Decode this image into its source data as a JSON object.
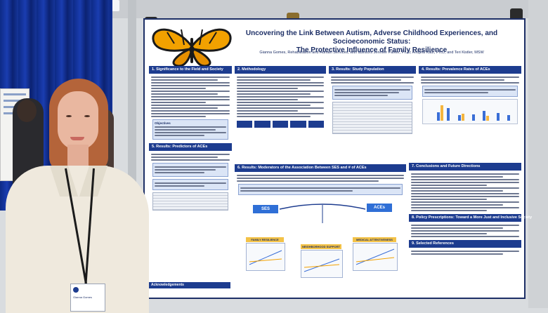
{
  "poster": {
    "title_line1": "Uncovering the Link Between Autism, Adverse Childhood Experiences, and Socioeconomic Status:",
    "title_line2": "The Protective Influence of Family Resilience",
    "authors": "Gianna Gomes, Rehabilitation and Human Services, with advisors Jennifer Parker, Ph.D; Andjela Kaur, Ph.D; and Teri Kistler, MSW",
    "sections": {
      "s1": "1. Significance to the Field and Society",
      "s2": "2. Methodology",
      "s3": "3. Results: Study Population",
      "s4": "4. Results: Prevalence Rates of ACEs",
      "s5": "5. Results: Predictors of ACEs",
      "s6": "6. Results: Moderators of the Association Between SES and # of ACEs",
      "s7": "7. Conclusions and Future Directions",
      "s8": "8. Policy Prescriptions: Toward a More Just and Inclusive Society",
      "s9": "9. Selected References"
    },
    "objectives_label": "Objectives",
    "figure": {
      "ses_label": "SES",
      "aces_label": "ACEs",
      "tag1": "FAMILY RESILIENCE",
      "tag2": "NEIGHBORHOOD SUPPORT",
      "tag3": "MEDICAL ATTENTIVENESS"
    },
    "acknowledgements": "Acknowledgements"
  },
  "badge": {
    "name": "Gianna Gomes"
  },
  "colors": {
    "poster_navy": "#1d3c8f",
    "accent_gold": "#f3c247",
    "butterfly_orange": "#f2a100"
  }
}
